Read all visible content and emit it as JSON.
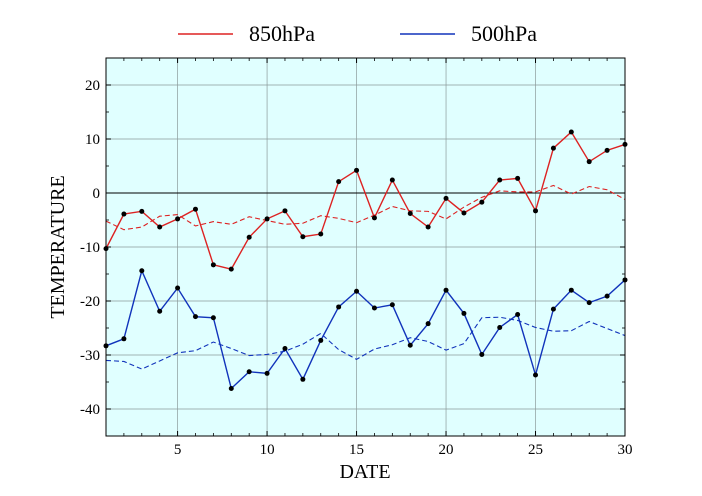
{
  "chart_data": {
    "type": "line",
    "xlabel": "DATE",
    "ylabel": "TEMPERATURE",
    "xlim": [
      1,
      30
    ],
    "ylim": [
      -45,
      25
    ],
    "xticks": [
      5,
      10,
      15,
      20,
      25,
      30
    ],
    "yticks": [
      -40,
      -30,
      -20,
      -10,
      0,
      10,
      20
    ],
    "grid": true,
    "background": "#e0ffff",
    "legend": {
      "placement": "top-center"
    },
    "x": [
      1,
      2,
      3,
      4,
      5,
      6,
      7,
      8,
      9,
      10,
      11,
      12,
      13,
      14,
      15,
      16,
      17,
      18,
      19,
      20,
      21,
      22,
      23,
      24,
      25,
      26,
      27,
      28,
      29,
      30
    ],
    "series": [
      {
        "name": "850hPa",
        "color": "#dd2222",
        "values": [
          -10.3,
          -3.9,
          -3.4,
          -6.3,
          -4.8,
          -3.0,
          -13.3,
          -14.1,
          -8.2,
          -4.8,
          -3.3,
          -8.1,
          -7.6,
          2.1,
          4.2,
          -4.6,
          2.4,
          -3.8,
          -6.3,
          -1.0,
          -3.7,
          -1.7,
          2.4,
          2.7,
          -3.3,
          8.3,
          11.3,
          5.8,
          7.9,
          9.0
        ],
        "normal": [
          -5.2,
          -6.8,
          -6.3,
          -4.3,
          -4.0,
          -6.1,
          -5.3,
          -5.8,
          -4.4,
          -5.1,
          -5.8,
          -5.6,
          -4.2,
          -4.7,
          -5.5,
          -4.1,
          -2.5,
          -3.3,
          -3.4,
          -4.8,
          -2.6,
          -0.8,
          0.4,
          0.2,
          0.2,
          1.4,
          -0.2,
          1.2,
          0.6,
          -1.2
        ]
      },
      {
        "name": "500hPa",
        "color": "#1133bb",
        "values": [
          -28.3,
          -27.0,
          -14.4,
          -21.9,
          -17.6,
          -22.9,
          -23.1,
          -36.2,
          -33.1,
          -33.4,
          -28.8,
          -34.5,
          -27.3,
          -21.1,
          -18.2,
          -21.3,
          -20.7,
          -28.2,
          -24.2,
          -18.0,
          -22.3,
          -29.9,
          -24.9,
          -22.5,
          -33.7,
          -21.5,
          -18.0,
          -20.3,
          -19.1,
          -16.1
        ],
        "normal": [
          -31.0,
          -31.2,
          -32.6,
          -31.1,
          -29.6,
          -29.2,
          -27.6,
          -28.8,
          -30.1,
          -29.9,
          -29.3,
          -28.0,
          -26.0,
          -29.0,
          -30.8,
          -28.9,
          -28.1,
          -26.8,
          -27.5,
          -29.1,
          -27.9,
          -23.1,
          -23.0,
          -23.6,
          -24.9,
          -25.6,
          -25.5,
          -23.8,
          -25.1,
          -26.4
        ]
      }
    ],
    "annotations": [
      {
        "type": "hline",
        "y": 0,
        "color": "#000000"
      }
    ]
  }
}
